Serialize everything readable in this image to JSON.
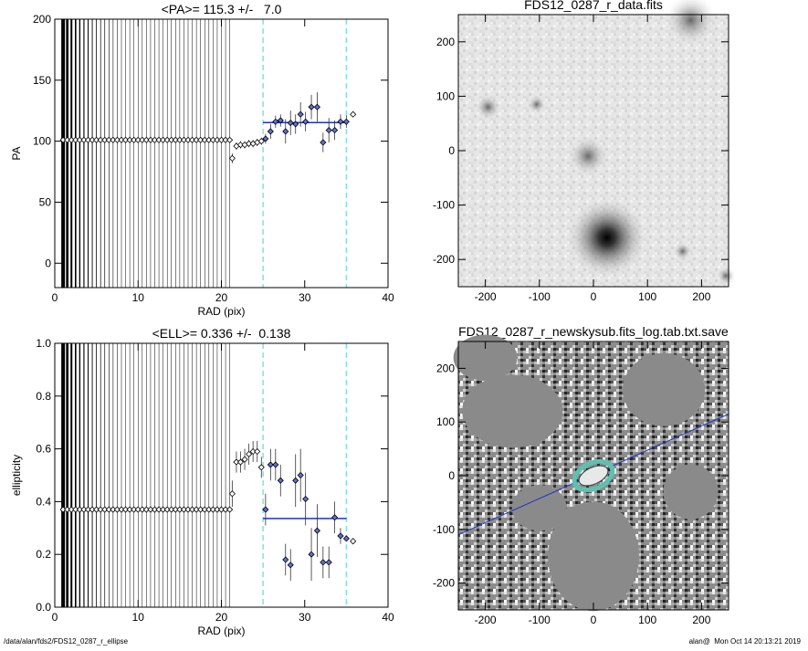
{
  "chart_data": [
    {
      "type": "profile",
      "title": "<PA>= 115.3 +/-   7.0",
      "x_label": "RAD (pix)",
      "y_label": "PA",
      "xlim": [
        0,
        40
      ],
      "ylim": [
        -20,
        200
      ],
      "xticks": [
        0,
        10,
        20,
        30,
        40
      ],
      "yticks": [
        0,
        50,
        100,
        150,
        200
      ],
      "mean": 115.3,
      "fit_range": [
        25,
        35
      ],
      "mean_color": "#2030c0",
      "range_color": "#80e0e0",
      "inner": {
        "x": [
          1,
          1.5,
          2,
          2.5,
          3,
          3.5,
          4,
          4.5,
          5,
          5.5,
          6,
          6.5,
          7,
          7.5,
          8,
          8.5,
          9,
          9.5,
          10,
          10.5,
          11,
          11.5,
          12,
          12.5,
          13,
          13.5,
          14,
          14.5,
          15,
          15.5,
          16,
          16.5,
          17,
          17.5,
          18,
          18.5,
          19,
          19.5,
          20,
          20.5,
          21
        ],
        "values": [
          101,
          101,
          101,
          101,
          101,
          101,
          101,
          101,
          101,
          101,
          101,
          101,
          101,
          101,
          101,
          101,
          101,
          101,
          101,
          101,
          101,
          101,
          101,
          101,
          101,
          101,
          101,
          101,
          101,
          101,
          101,
          101,
          101,
          101,
          101,
          101,
          101,
          101,
          101,
          101,
          101
        ]
      },
      "outer": {
        "x": [
          21.3,
          21.8,
          22.3,
          22.8,
          23.3,
          23.8,
          24.3,
          24.8,
          25.3,
          25.9,
          26.5,
          27.1,
          27.7,
          28.3,
          28.9,
          29.5,
          30.1,
          30.8,
          31.5,
          32.2,
          32.9,
          33.6,
          34.3,
          35.0,
          35.8
        ],
        "values": [
          86,
          96,
          97,
          97,
          98,
          98,
          99,
          100,
          102,
          108,
          116,
          117,
          108,
          115,
          114,
          122,
          116,
          128,
          128,
          99,
          109,
          109,
          116,
          116,
          122
        ],
        "errors": [
          4,
          3,
          3,
          3,
          3,
          3,
          3,
          3,
          4,
          6,
          5,
          5,
          10,
          10,
          8,
          10,
          8,
          10,
          12,
          8,
          10,
          8,
          6,
          5,
          2
        ]
      }
    },
    {
      "type": "image",
      "title": "FDS12_0287_r_data.fits",
      "variant": "data",
      "xlim": [
        -250,
        250
      ],
      "ylim": [
        -250,
        250
      ],
      "xticks": [
        -200,
        -100,
        0,
        100,
        200
      ],
      "yticks": [
        -200,
        -100,
        0,
        100,
        200
      ]
    },
    {
      "type": "profile",
      "title": "<ELL>= 0.336 +/-  0.138",
      "x_label": "RAD (pix)",
      "y_label": "ellipticity",
      "xlim": [
        0,
        40
      ],
      "ylim": [
        0,
        1
      ],
      "xticks": [
        0,
        10,
        20,
        30,
        40
      ],
      "yticks": [
        {
          "value": 0,
          "label": "0.0"
        },
        0.2,
        0.4,
        0.6,
        0.8,
        {
          "value": 1,
          "label": "1.0"
        }
      ],
      "mean": 0.336,
      "fit_range": [
        25,
        35
      ],
      "mean_color": "#2030c0",
      "range_color": "#80e0e0",
      "inner": {
        "x": [
          1,
          1.5,
          2,
          2.5,
          3,
          3.5,
          4,
          4.5,
          5,
          5.5,
          6,
          6.5,
          7,
          7.5,
          8,
          8.5,
          9,
          9.5,
          10,
          10.5,
          11,
          11.5,
          12,
          12.5,
          13,
          13.5,
          14,
          14.5,
          15,
          15.5,
          16,
          16.5,
          17,
          17.5,
          18,
          18.5,
          19,
          19.5,
          20,
          20.5,
          21
        ],
        "values": [
          0.37,
          0.37,
          0.37,
          0.37,
          0.37,
          0.37,
          0.37,
          0.37,
          0.37,
          0.37,
          0.37,
          0.37,
          0.37,
          0.37,
          0.37,
          0.37,
          0.37,
          0.37,
          0.37,
          0.37,
          0.37,
          0.37,
          0.37,
          0.37,
          0.37,
          0.37,
          0.37,
          0.37,
          0.37,
          0.37,
          0.37,
          0.37,
          0.37,
          0.37,
          0.37,
          0.37,
          0.37,
          0.37,
          0.37,
          0.37,
          0.37
        ]
      },
      "outer": {
        "x": [
          21.3,
          21.8,
          22.3,
          22.8,
          23.3,
          23.8,
          24.3,
          24.8,
          25.3,
          25.9,
          26.5,
          27.1,
          27.7,
          28.3,
          28.9,
          29.5,
          30.1,
          30.8,
          31.5,
          32.2,
          32.9,
          33.6,
          34.3,
          35.0,
          35.8
        ],
        "values": [
          0.43,
          0.55,
          0.55,
          0.56,
          0.58,
          0.59,
          0.59,
          0.53,
          0.37,
          0.54,
          0.54,
          0.48,
          0.18,
          0.16,
          0.48,
          0.5,
          0.41,
          0.2,
          0.29,
          0.17,
          0.17,
          0.34,
          0.27,
          0.26,
          0.25
        ],
        "errors": [
          0.05,
          0.04,
          0.04,
          0.04,
          0.04,
          0.04,
          0.04,
          0.04,
          0.06,
          0.06,
          0.06,
          0.06,
          0.06,
          0.06,
          0.1,
          0.1,
          0.1,
          0.1,
          0.1,
          0.06,
          0.06,
          0.06,
          0.03,
          0.01,
          0.01
        ]
      }
    },
    {
      "type": "image",
      "title": "FDS12_0287_r_newskysub.fits_log.tab.txt.save",
      "variant": "residual",
      "xlim": [
        -250,
        250
      ],
      "ylim": [
        -250,
        250
      ],
      "xticks": [
        -200,
        -100,
        0,
        100,
        200
      ],
      "yticks": [
        -200,
        -100,
        0,
        100,
        200
      ]
    }
  ],
  "footer": {
    "left": "/data/alan/fds2/FDS12_0287_r_ellipse",
    "right": "alan@  Mon Oct 14 20:13:21 2019"
  }
}
